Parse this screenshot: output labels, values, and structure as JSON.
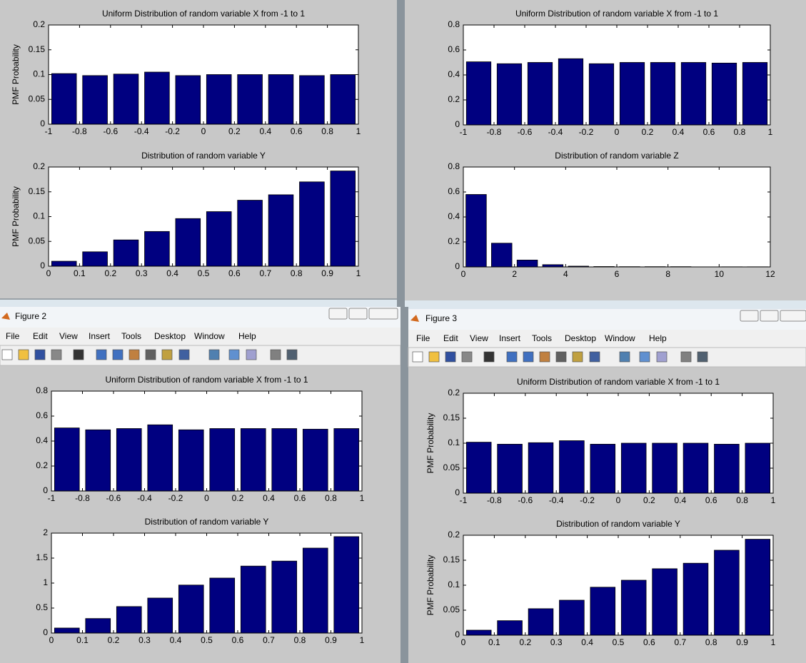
{
  "windows": [
    {
      "title": "Figure 2",
      "menu": [
        "File",
        "Edit",
        "View",
        "Insert",
        "Tools",
        "Desktop",
        "Window",
        "Help"
      ]
    },
    {
      "title": "Figure 3",
      "menu": [
        "File",
        "Edit",
        "View",
        "Insert",
        "Tools",
        "Desktop",
        "Window",
        "Help"
      ]
    }
  ],
  "chart_data": [
    {
      "type": "bar",
      "title": "Uniform Distribution of random variable X from -1 to 1",
      "y_label": "PMF Probability",
      "color": "#000080",
      "x": [
        -0.9,
        -0.7,
        -0.5,
        -0.3,
        -0.1,
        0.1,
        0.3,
        0.5,
        0.7,
        0.9
      ],
      "values": [
        0.102,
        0.098,
        0.101,
        0.105,
        0.098,
        0.1,
        0.1,
        0.1,
        0.098,
        0.1
      ],
      "xlim": [
        -1,
        1
      ],
      "xticks": [
        -1,
        -0.8,
        -0.6,
        -0.4,
        -0.2,
        0,
        0.2,
        0.4,
        0.6,
        0.8,
        1
      ],
      "ylim": [
        0,
        0.2
      ],
      "yticks": [
        0,
        0.05,
        0.1,
        0.15,
        0.2
      ]
    },
    {
      "type": "bar",
      "title": "Distribution of random variable Y",
      "y_label": "PMF Probability",
      "color": "#000080",
      "x": [
        0.05,
        0.15,
        0.25,
        0.35,
        0.45,
        0.55,
        0.65,
        0.75,
        0.85,
        0.95
      ],
      "values": [
        0.01,
        0.029,
        0.053,
        0.07,
        0.096,
        0.11,
        0.133,
        0.144,
        0.17,
        0.192
      ],
      "xlim": [
        0,
        1
      ],
      "xticks": [
        0,
        0.1,
        0.2,
        0.3,
        0.4,
        0.5,
        0.6,
        0.7,
        0.8,
        0.9,
        1
      ],
      "ylim": [
        0,
        0.2
      ],
      "yticks": [
        0,
        0.05,
        0.1,
        0.15,
        0.2
      ]
    },
    {
      "type": "bar",
      "title": "Uniform Distribution of random variable X from -1 to 1",
      "color": "#000080",
      "x": [
        -0.9,
        -0.7,
        -0.5,
        -0.3,
        -0.1,
        0.1,
        0.3,
        0.5,
        0.7,
        0.9
      ],
      "values": [
        0.505,
        0.49,
        0.5,
        0.53,
        0.49,
        0.5,
        0.5,
        0.5,
        0.495,
        0.5
      ],
      "xlim": [
        -1,
        1
      ],
      "xticks": [
        -1,
        -0.8,
        -0.6,
        -0.4,
        -0.2,
        0,
        0.2,
        0.4,
        0.6,
        0.8,
        1
      ],
      "ylim": [
        0,
        0.8
      ],
      "yticks": [
        0,
        0.2,
        0.4,
        0.6,
        0.8
      ]
    },
    {
      "type": "bar",
      "title": "Distribution of random variable Z",
      "color": "#000080",
      "x": [
        0.5,
        1.5,
        2.5,
        3.5,
        4.5,
        5.5,
        6.5,
        7.5,
        8.5,
        9.5,
        10.5,
        11.5
      ],
      "values": [
        0.58,
        0.19,
        0.055,
        0.018,
        0.006,
        0.003,
        0.002,
        0.002,
        0.002,
        0,
        0.001,
        0.001
      ],
      "xlim": [
        0,
        12
      ],
      "xticks": [
        0,
        2,
        4,
        6,
        8,
        10,
        12
      ],
      "ylim": [
        0,
        0.8
      ],
      "yticks": [
        0,
        0.2,
        0.4,
        0.6,
        0.8
      ]
    },
    {
      "type": "bar",
      "title": "Uniform Distribution of random variable X from -1 to 1",
      "color": "#000080",
      "x": [
        -0.9,
        -0.7,
        -0.5,
        -0.3,
        -0.1,
        0.1,
        0.3,
        0.5,
        0.7,
        0.9
      ],
      "values": [
        0.505,
        0.49,
        0.5,
        0.53,
        0.49,
        0.5,
        0.5,
        0.5,
        0.495,
        0.5
      ],
      "xlim": [
        -1,
        1
      ],
      "xticks": [
        -1,
        -0.8,
        -0.6,
        -0.4,
        -0.2,
        0,
        0.2,
        0.4,
        0.6,
        0.8,
        1
      ],
      "ylim": [
        0,
        0.8
      ],
      "yticks": [
        0,
        0.2,
        0.4,
        0.6,
        0.8
      ]
    },
    {
      "type": "bar",
      "title": "Distribution of random variable Y",
      "color": "#000080",
      "x": [
        0.05,
        0.15,
        0.25,
        0.35,
        0.45,
        0.55,
        0.65,
        0.75,
        0.85,
        0.95
      ],
      "values": [
        0.1,
        0.29,
        0.53,
        0.7,
        0.96,
        1.1,
        1.34,
        1.44,
        1.7,
        1.93
      ],
      "xlim": [
        0,
        1
      ],
      "xticks": [
        0,
        0.1,
        0.2,
        0.3,
        0.4,
        0.5,
        0.6,
        0.7,
        0.8,
        0.9,
        1
      ],
      "ylim": [
        0,
        2
      ],
      "yticks": [
        0,
        0.5,
        1,
        1.5,
        2
      ]
    },
    {
      "type": "bar",
      "title": "Uniform Distribution of random variable X from -1 to 1",
      "y_label": "PMF Probability",
      "color": "#000080",
      "x": [
        -0.9,
        -0.7,
        -0.5,
        -0.3,
        -0.1,
        0.1,
        0.3,
        0.5,
        0.7,
        0.9
      ],
      "values": [
        0.102,
        0.098,
        0.101,
        0.105,
        0.098,
        0.1,
        0.1,
        0.1,
        0.098,
        0.1
      ],
      "xlim": [
        -1,
        1
      ],
      "xticks": [
        -1,
        -0.8,
        -0.6,
        -0.4,
        -0.2,
        0,
        0.2,
        0.4,
        0.6,
        0.8,
        1
      ],
      "ylim": [
        0,
        0.2
      ],
      "yticks": [
        0,
        0.05,
        0.1,
        0.15,
        0.2
      ]
    },
    {
      "type": "bar",
      "title": "Distribution of random variable Y",
      "y_label": "PMF Probability",
      "color": "#000080",
      "x": [
        0.05,
        0.15,
        0.25,
        0.35,
        0.45,
        0.55,
        0.65,
        0.75,
        0.85,
        0.95
      ],
      "values": [
        0.01,
        0.029,
        0.053,
        0.07,
        0.096,
        0.11,
        0.133,
        0.144,
        0.17,
        0.192
      ],
      "xlim": [
        0,
        1
      ],
      "xticks": [
        0,
        0.1,
        0.2,
        0.3,
        0.4,
        0.5,
        0.6,
        0.7,
        0.8,
        0.9,
        1
      ],
      "ylim": [
        0,
        0.2
      ],
      "yticks": [
        0,
        0.05,
        0.1,
        0.15,
        0.2
      ]
    }
  ]
}
